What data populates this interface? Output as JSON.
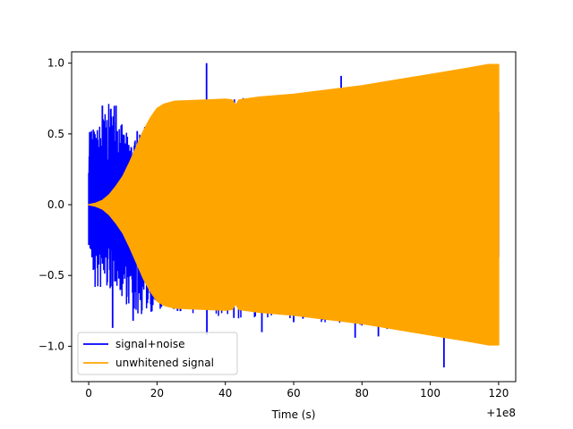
{
  "chart_data": {
    "type": "line",
    "title": "",
    "xlabel": "Time (s)",
    "ylabel": "",
    "x_offset_label": "+1e8",
    "xlim": [
      -5,
      125
    ],
    "ylim": [
      -1.25,
      1.08
    ],
    "x_ticks": [
      0,
      20,
      40,
      60,
      80,
      100,
      120
    ],
    "x_tick_labels": [
      "0",
      "20",
      "40",
      "60",
      "80",
      "100",
      "120"
    ],
    "y_ticks": [
      -1.0,
      -0.5,
      0.0,
      0.5,
      1.0
    ],
    "y_tick_labels": [
      "−1.0",
      "−0.5",
      "0.0",
      "0.5",
      "1.0"
    ],
    "grid": false,
    "legend_position": "lower-left",
    "series": [
      {
        "name": "signal+noise",
        "color": "#0000ff",
        "render": "dense",
        "x_range": [
          0,
          120
        ],
        "envelope_upper": [
          [
            0,
            0.64
          ],
          [
            2,
            0.52
          ],
          [
            4,
            0.63
          ],
          [
            6,
            0.72
          ],
          [
            8,
            0.77
          ],
          [
            10,
            0.54
          ],
          [
            12,
            0.49
          ],
          [
            14,
            0.46
          ],
          [
            16,
            0.54
          ],
          [
            18,
            0.6
          ],
          [
            20,
            0.68
          ],
          [
            24,
            0.73
          ],
          [
            30,
            0.73
          ],
          [
            40,
            0.75
          ],
          [
            50,
            0.76
          ],
          [
            60,
            0.78
          ],
          [
            70,
            0.8
          ],
          [
            80,
            0.84
          ],
          [
            90,
            0.87
          ],
          [
            100,
            0.92
          ],
          [
            110,
            0.96
          ],
          [
            119,
            0.99
          ]
        ],
        "envelope_lower": [
          [
            0,
            -0.3
          ],
          [
            2,
            -0.64
          ],
          [
            4,
            -0.6
          ],
          [
            6,
            -0.63
          ],
          [
            8,
            -0.57
          ],
          [
            10,
            -0.68
          ],
          [
            12,
            -0.73
          ],
          [
            14,
            -0.8
          ],
          [
            16,
            -0.78
          ],
          [
            18,
            -0.76
          ],
          [
            20,
            -0.78
          ],
          [
            24,
            -0.76
          ],
          [
            30,
            -0.78
          ],
          [
            40,
            -0.8
          ],
          [
            50,
            -0.81
          ],
          [
            60,
            -0.82
          ],
          [
            70,
            -0.84
          ],
          [
            80,
            -0.86
          ],
          [
            90,
            -0.89
          ],
          [
            100,
            -0.93
          ],
          [
            110,
            -0.96
          ],
          [
            119,
            -0.99
          ]
        ],
        "spikes": [
          [
            34.5,
            1.0
          ],
          [
            73.9,
            0.91
          ],
          [
            104.0,
            -1.15
          ],
          [
            78.0,
            -0.94
          ],
          [
            84.8,
            -0.93
          ],
          [
            50.7,
            -0.9
          ],
          [
            34.6,
            -0.92
          ],
          [
            7.0,
            -0.87
          ],
          [
            13.0,
            -0.82
          ],
          [
            26.0,
            -0.75
          ],
          [
            4.0,
            0.7
          ],
          [
            8.0,
            0.7
          ],
          [
            14.2,
            0.52
          ],
          [
            42.5,
            -0.8
          ],
          [
            44.0,
            0.65
          ],
          [
            95.0,
            -0.9
          ],
          [
            110.0,
            -0.95
          ],
          [
            60.0,
            -0.83
          ]
        ]
      },
      {
        "name": "unwhitened signal",
        "color": "#ffa500",
        "render": "filled_envelope",
        "x_range": [
          0,
          120
        ],
        "envelope_upper": [
          [
            0,
            0.0
          ],
          [
            2,
            0.01
          ],
          [
            4,
            0.03
          ],
          [
            6,
            0.07
          ],
          [
            8,
            0.13
          ],
          [
            10,
            0.2
          ],
          [
            12,
            0.3
          ],
          [
            14,
            0.41
          ],
          [
            16,
            0.52
          ],
          [
            18,
            0.61
          ],
          [
            20,
            0.68
          ],
          [
            22,
            0.71
          ],
          [
            25,
            0.73
          ],
          [
            30,
            0.735
          ],
          [
            35,
            0.74
          ],
          [
            40,
            0.745
          ],
          [
            42,
            0.74
          ],
          [
            43,
            0.7
          ],
          [
            44,
            0.74
          ],
          [
            50,
            0.76
          ],
          [
            60,
            0.78
          ],
          [
            70,
            0.81
          ],
          [
            80,
            0.84
          ],
          [
            90,
            0.88
          ],
          [
            100,
            0.92
          ],
          [
            110,
            0.96
          ],
          [
            117,
            0.99
          ],
          [
            120,
            0.99
          ]
        ],
        "envelope_lower": [
          [
            0,
            0.0
          ],
          [
            2,
            -0.01
          ],
          [
            4,
            -0.03
          ],
          [
            6,
            -0.07
          ],
          [
            8,
            -0.13
          ],
          [
            10,
            -0.2
          ],
          [
            12,
            -0.3
          ],
          [
            14,
            -0.41
          ],
          [
            16,
            -0.52
          ],
          [
            18,
            -0.61
          ],
          [
            20,
            -0.68
          ],
          [
            22,
            -0.71
          ],
          [
            25,
            -0.73
          ],
          [
            30,
            -0.735
          ],
          [
            35,
            -0.74
          ],
          [
            40,
            -0.745
          ],
          [
            42,
            -0.74
          ],
          [
            43,
            -0.7
          ],
          [
            44,
            -0.74
          ],
          [
            50,
            -0.76
          ],
          [
            60,
            -0.78
          ],
          [
            70,
            -0.81
          ],
          [
            80,
            -0.84
          ],
          [
            90,
            -0.88
          ],
          [
            100,
            -0.92
          ],
          [
            110,
            -0.96
          ],
          [
            117,
            -0.99
          ],
          [
            120,
            -0.99
          ]
        ]
      }
    ]
  }
}
